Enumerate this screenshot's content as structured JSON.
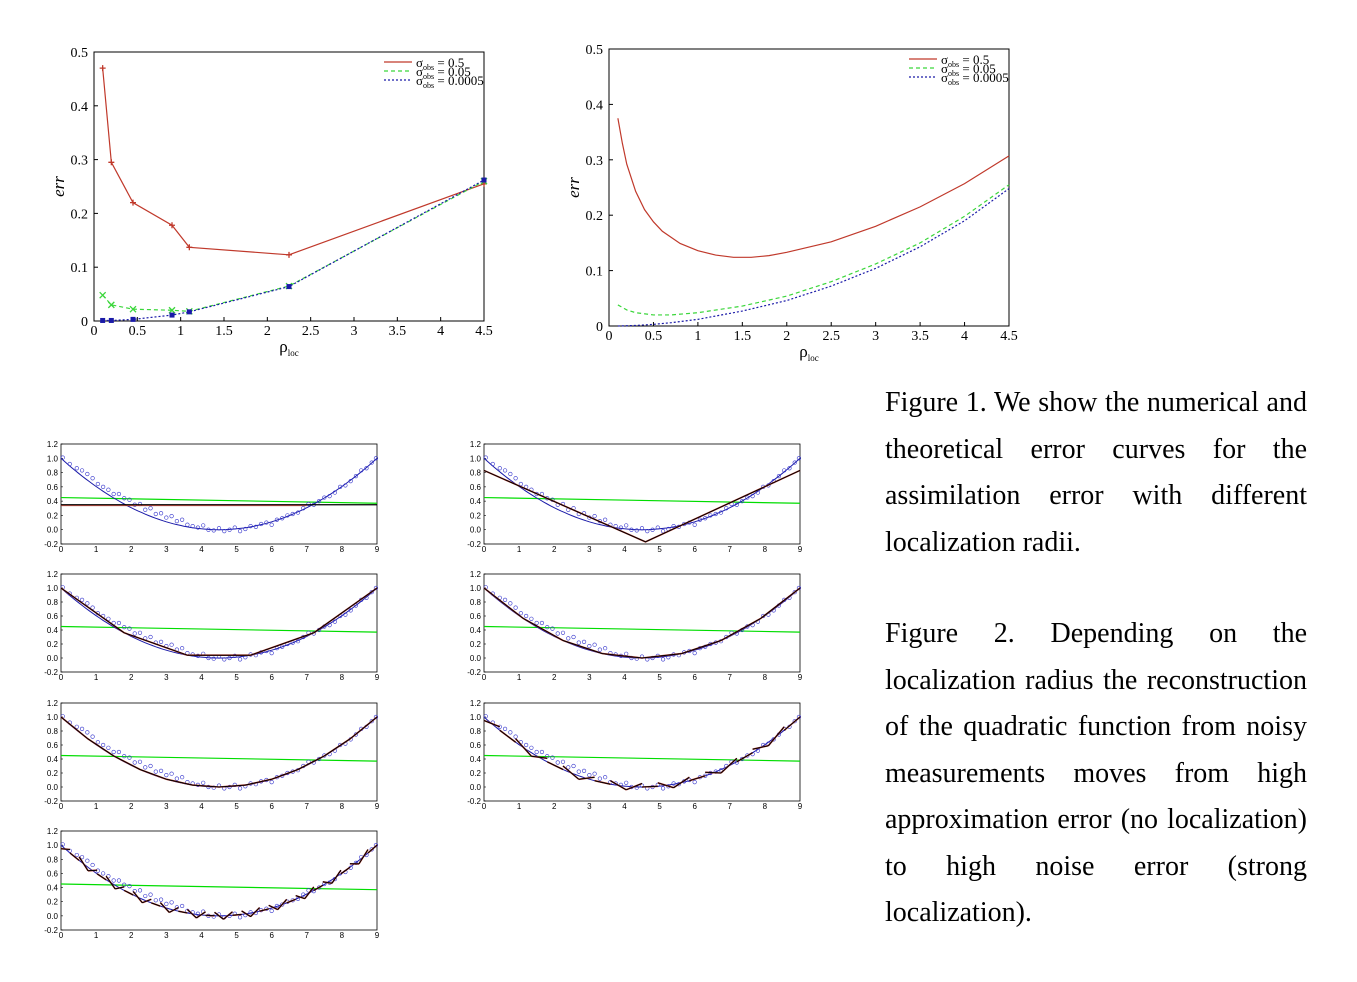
{
  "captions": {
    "fig1": "Figure 1. We show the numerical and theoretical error curves for the assimilation error with different localization radii.",
    "fig2": "Figure 2. Depending on the localization radius the reconstruction of the quadratic function from noisy measurements moves from high approximation error (no localization) to high noise error (strong localization)."
  },
  "colors": {
    "red": "#c0392b",
    "green": "#3bd63b",
    "blue": "#1a1aa8",
    "black": "#000000",
    "gridline": "#00dd00",
    "circle": "#3333cc"
  },
  "chart_data": [
    {
      "type": "line",
      "id": "numerical",
      "xlabel": "ρ",
      "xlabel_sub": "loc",
      "ylabel": "err",
      "xlim": [
        0,
        4.5
      ],
      "ylim": [
        0,
        0.5
      ],
      "xticks": [
        "0",
        "0.5",
        "1",
        "1.5",
        "2",
        "2.5",
        "3",
        "3.5",
        "4",
        "4.5"
      ],
      "yticks": [
        "0",
        "0.1",
        "0.2",
        "0.3",
        "0.4",
        "0.5"
      ],
      "legend_position": "top-right",
      "series": [
        {
          "name": "σobs = 0.5",
          "legend_sigma": "σ",
          "legend_sub": "obs",
          "legend_tail": " = 0.5",
          "color": "#c0392b",
          "dash": "",
          "marker": "+",
          "x": [
            0.1,
            0.2,
            0.45,
            0.9,
            1.1,
            2.25,
            4.5
          ],
          "y": [
            0.47,
            0.295,
            0.22,
            0.178,
            0.137,
            0.123,
            0.255
          ]
        },
        {
          "name": "σobs = 0.05",
          "legend_sigma": "σ",
          "legend_sub": "obs",
          "legend_tail": " = 0.05",
          "color": "#3bd63b",
          "dash": "4,3",
          "marker": "x",
          "x": [
            0.1,
            0.2,
            0.45,
            0.9,
            1.1,
            2.25,
            4.5
          ],
          "y": [
            0.048,
            0.03,
            0.022,
            0.02,
            0.018,
            0.065,
            0.26
          ]
        },
        {
          "name": "σobs = 0.0005",
          "legend_sigma": "σ",
          "legend_sub": "obs",
          "legend_tail": " = 0.0005",
          "color": "#1a1aa8",
          "dash": "2,2",
          "marker": "square",
          "x": [
            0.1,
            0.2,
            0.45,
            0.9,
            1.1,
            2.25,
            4.5
          ],
          "y": [
            0.001,
            0.001,
            0.003,
            0.011,
            0.017,
            0.064,
            0.262
          ]
        }
      ]
    },
    {
      "type": "line",
      "id": "theoretical",
      "xlabel": "ρ",
      "xlabel_sub": "loc",
      "ylabel": "err",
      "xlim": [
        0,
        4.5
      ],
      "ylim": [
        0,
        0.5
      ],
      "xticks": [
        "0",
        "0.5",
        "1",
        "1.5",
        "2",
        "2.5",
        "3",
        "3.5",
        "4",
        "4.5"
      ],
      "yticks": [
        "0",
        "0.1",
        "0.2",
        "0.3",
        "0.4",
        "0.5"
      ],
      "legend_position": "top-right",
      "series": [
        {
          "name": "σobs = 0.5",
          "legend_sigma": "σ",
          "legend_sub": "obs",
          "legend_tail": " = 0.5",
          "color": "#c0392b",
          "dash": "",
          "x": [
            0.1,
            0.15,
            0.2,
            0.3,
            0.4,
            0.5,
            0.6,
            0.8,
            1.0,
            1.2,
            1.4,
            1.6,
            1.8,
            2.0,
            2.5,
            3.0,
            3.5,
            4.0,
            4.5
          ],
          "y": [
            0.375,
            0.33,
            0.292,
            0.243,
            0.21,
            0.188,
            0.171,
            0.149,
            0.136,
            0.128,
            0.124,
            0.124,
            0.127,
            0.133,
            0.152,
            0.18,
            0.215,
            0.257,
            0.307
          ]
        },
        {
          "name": "σobs = 0.05",
          "legend_sigma": "σ",
          "legend_sub": "obs",
          "legend_tail": " = 0.05",
          "color": "#3bd63b",
          "dash": "4,3",
          "x": [
            0.1,
            0.2,
            0.3,
            0.5,
            0.7,
            1.0,
            1.5,
            2.0,
            2.5,
            3.0,
            3.5,
            4.0,
            4.5
          ],
          "y": [
            0.038,
            0.029,
            0.024,
            0.02,
            0.02,
            0.024,
            0.036,
            0.054,
            0.08,
            0.112,
            0.15,
            0.198,
            0.255
          ]
        },
        {
          "name": "σobs = 0.0005",
          "legend_sigma": "σ",
          "legend_sub": "obs",
          "legend_tail": " = 0.0005",
          "color": "#1a1aa8",
          "dash": "2,2",
          "x": [
            0.1,
            0.3,
            0.5,
            0.7,
            1.0,
            1.5,
            2.0,
            2.5,
            3.0,
            3.5,
            4.0,
            4.5
          ],
          "y": [
            0.0,
            0.001,
            0.003,
            0.006,
            0.012,
            0.027,
            0.046,
            0.072,
            0.104,
            0.143,
            0.19,
            0.248
          ]
        }
      ]
    },
    {
      "type": "scatter",
      "id": "reconstruction-panels",
      "xlim": [
        0,
        9
      ],
      "ylim": [
        -0.2,
        1.2
      ],
      "xticks": [
        "0",
        "1",
        "2",
        "3",
        "4",
        "5",
        "6",
        "7",
        "8",
        "9"
      ],
      "yticks": [
        "-0.2",
        "0.0",
        "0.2",
        "0.4",
        "0.6",
        "0.8",
        "1.0",
        "1.2"
      ],
      "true_function": "((x-4.5)/4.5)^2",
      "panels": [
        {
          "green": [
            0.45,
            0.37
          ],
          "fit": "const",
          "fit_value": 0.35
        },
        {
          "green": [
            0.45,
            0.37
          ],
          "fit": "vee",
          "segments": 2
        },
        {
          "green": [
            0.45,
            0.37
          ],
          "fit": "piecewise",
          "segments": 5
        },
        {
          "green": [
            0.45,
            0.37
          ],
          "fit": "piecewise",
          "segments": 8
        },
        {
          "green": [
            0.45,
            0.37
          ],
          "fit": "piecewise",
          "segments": 12
        },
        {
          "green": [
            0.45,
            0.37
          ],
          "fit": "piecewise",
          "segments": 20
        },
        {
          "green": [
            0.45,
            0.37
          ],
          "fit": "piecewise",
          "segments": 35
        }
      ],
      "noisy_samples": [
        [
          0.05,
          1.01
        ],
        [
          0.25,
          0.92
        ],
        [
          0.45,
          0.86
        ],
        [
          0.6,
          0.83
        ],
        [
          0.75,
          0.78
        ],
        [
          0.9,
          0.72
        ],
        [
          1.05,
          0.64
        ],
        [
          1.2,
          0.6
        ],
        [
          1.35,
          0.56
        ],
        [
          1.5,
          0.5
        ],
        [
          1.65,
          0.5
        ],
        [
          1.8,
          0.44
        ],
        [
          1.95,
          0.42
        ],
        [
          2.1,
          0.35
        ],
        [
          2.25,
          0.36
        ],
        [
          2.4,
          0.28
        ],
        [
          2.55,
          0.3
        ],
        [
          2.7,
          0.22
        ],
        [
          2.85,
          0.23
        ],
        [
          3.0,
          0.17
        ],
        [
          3.15,
          0.19
        ],
        [
          3.3,
          0.12
        ],
        [
          3.45,
          0.14
        ],
        [
          3.6,
          0.07
        ],
        [
          3.75,
          0.05
        ],
        [
          3.9,
          0.03
        ],
        [
          4.05,
          0.06
        ],
        [
          4.2,
          0.0
        ],
        [
          4.35,
          -0.01
        ],
        [
          4.5,
          0.02
        ],
        [
          4.65,
          -0.02
        ],
        [
          4.8,
          0.0
        ],
        [
          4.95,
          0.03
        ],
        [
          5.1,
          -0.02
        ],
        [
          5.25,
          0.01
        ],
        [
          5.4,
          0.05
        ],
        [
          5.55,
          0.04
        ],
        [
          5.7,
          0.08
        ],
        [
          5.85,
          0.1
        ],
        [
          6.0,
          0.07
        ],
        [
          6.15,
          0.14
        ],
        [
          6.3,
          0.16
        ],
        [
          6.45,
          0.2
        ],
        [
          6.6,
          0.22
        ],
        [
          6.75,
          0.24
        ],
        [
          6.9,
          0.3
        ],
        [
          7.05,
          0.36
        ],
        [
          7.2,
          0.35
        ],
        [
          7.35,
          0.4
        ],
        [
          7.5,
          0.45
        ],
        [
          7.65,
          0.47
        ],
        [
          7.8,
          0.52
        ],
        [
          7.95,
          0.6
        ],
        [
          8.1,
          0.62
        ],
        [
          8.25,
          0.68
        ],
        [
          8.4,
          0.75
        ],
        [
          8.55,
          0.83
        ],
        [
          8.7,
          0.86
        ],
        [
          8.85,
          0.94
        ],
        [
          8.97,
          1.0
        ]
      ]
    }
  ]
}
